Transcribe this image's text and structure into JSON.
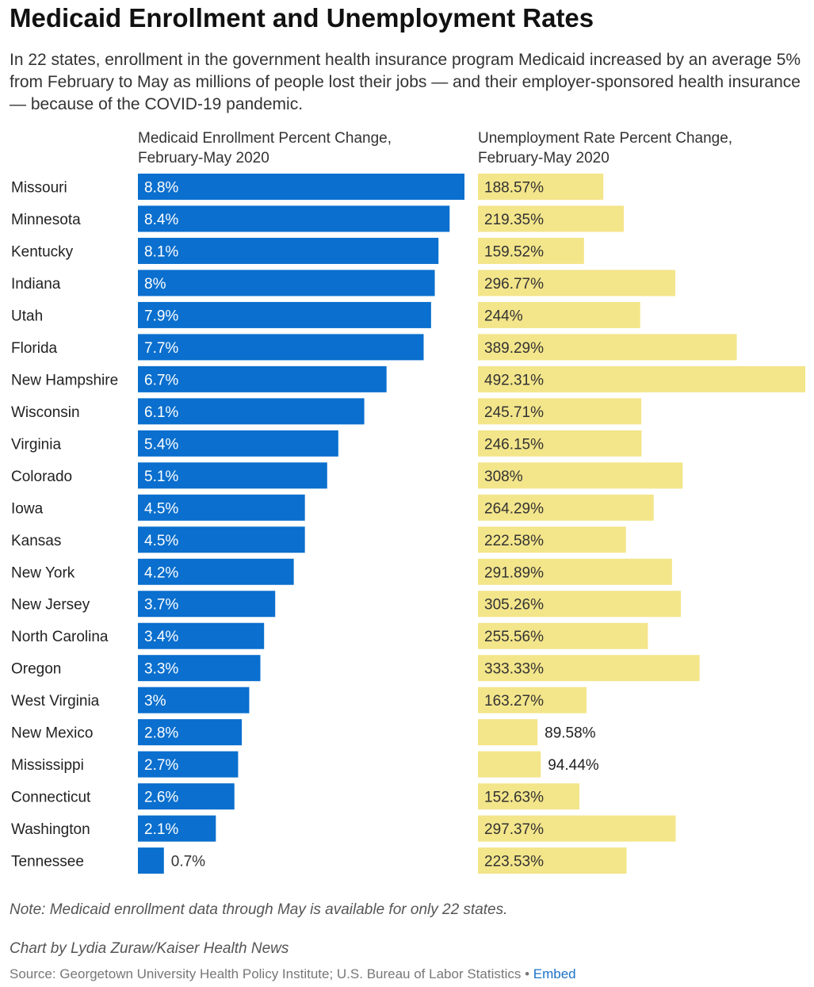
{
  "header": {
    "title": "Medicaid Enrollment and Unemployment Rates",
    "subtitle": "In 22 states, enrollment in the government health insurance program Medicaid increased by an average 5% from February to May as millions of people lost their jobs — and their employer-sponsored health insurance — because of the COVID-19 pandemic."
  },
  "columns": {
    "left": "Medicaid Enrollment Percent Change, February-May 2020",
    "right": "Unemployment Rate Percent Change, February-May 2020"
  },
  "colors": {
    "medicaid_bar": "#0a6fce",
    "unemployment_bar": "#f3e58a",
    "embed_link": "#1a73c8"
  },
  "chart_data": {
    "type": "bar",
    "orientation": "horizontal",
    "categories": [
      "Missouri",
      "Minnesota",
      "Kentucky",
      "Indiana",
      "Utah",
      "Florida",
      "New Hampshire",
      "Wisconsin",
      "Virginia",
      "Colorado",
      "Iowa",
      "Kansas",
      "New York",
      "New Jersey",
      "North Carolina",
      "Oregon",
      "West Virginia",
      "New Mexico",
      "Mississippi",
      "Connecticut",
      "Washington",
      "Tennessee"
    ],
    "series": [
      {
        "name": "Medicaid Enrollment Percent Change, February-May 2020",
        "values": [
          8.8,
          8.4,
          8.1,
          8,
          7.9,
          7.7,
          6.7,
          6.1,
          5.4,
          5.1,
          4.5,
          4.5,
          4.2,
          3.7,
          3.4,
          3.3,
          3,
          2.8,
          2.7,
          2.6,
          2.1,
          0.7
        ],
        "labels": [
          "8.8%",
          "8.4%",
          "8.1%",
          "8%",
          "7.9%",
          "7.7%",
          "6.7%",
          "6.1%",
          "5.4%",
          "5.1%",
          "4.5%",
          "4.5%",
          "4.2%",
          "3.7%",
          "3.4%",
          "3.3%",
          "3%",
          "2.8%",
          "2.7%",
          "2.6%",
          "2.1%",
          "0.7%"
        ]
      },
      {
        "name": "Unemployment Rate Percent Change, February-May 2020",
        "values": [
          188.57,
          219.35,
          159.52,
          296.77,
          244,
          389.29,
          492.31,
          245.71,
          246.15,
          308,
          264.29,
          222.58,
          291.89,
          305.26,
          255.56,
          333.33,
          163.27,
          89.58,
          94.44,
          152.63,
          297.37,
          223.53
        ],
        "labels": [
          "188.57%",
          "219.35%",
          "159.52%",
          "296.77%",
          "244%",
          "389.29%",
          "492.31%",
          "245.71%",
          "246.15%",
          "308%",
          "264.29%",
          "222.58%",
          "291.89%",
          "305.26%",
          "255.56%",
          "333.33%",
          "163.27%",
          "89.58%",
          "94.44%",
          "152.63%",
          "297.37%",
          "223.53%"
        ]
      }
    ],
    "xlim_left": [
      0,
      8.8
    ],
    "xlim_right": [
      0,
      492.31
    ],
    "grid": false,
    "legend": "none"
  },
  "footer": {
    "note": "Note: Medicaid enrollment data through May is available for only 22 states.",
    "credit": "Chart by Lydia Zuraw/Kaiser Health News",
    "source": "Source: Georgetown University Health Policy Institute; U.S. Bureau of Labor Statistics",
    "separator": " • ",
    "embed_label": "Embed"
  }
}
